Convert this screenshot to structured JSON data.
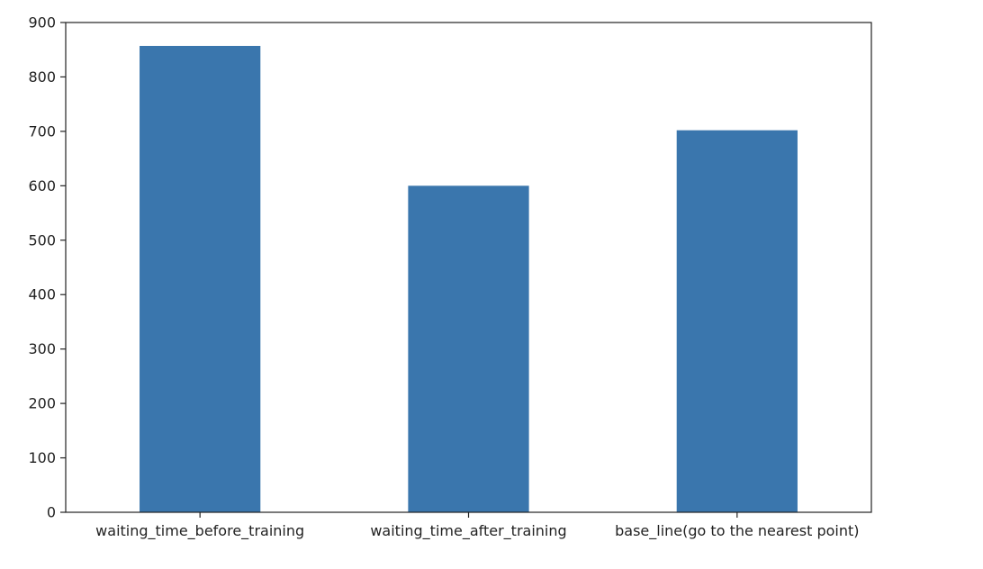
{
  "chart_data": {
    "type": "bar",
    "title": "",
    "xlabel": "",
    "ylabel": "",
    "categories": [
      "waiting_time_before_training",
      "waiting_time_after_training",
      "base_line(go to the nearest point)"
    ],
    "values": [
      857,
      600,
      702
    ],
    "ylim": [
      0,
      900
    ],
    "yticks": [
      0,
      100,
      200,
      300,
      400,
      500,
      600,
      700,
      800,
      900
    ],
    "ytick_labels": [
      "0",
      "100",
      "200",
      "300",
      "400",
      "500",
      "600",
      "700",
      "800",
      "900"
    ],
    "bar_color": "#3a76ad",
    "grid": false,
    "legend": "none"
  }
}
